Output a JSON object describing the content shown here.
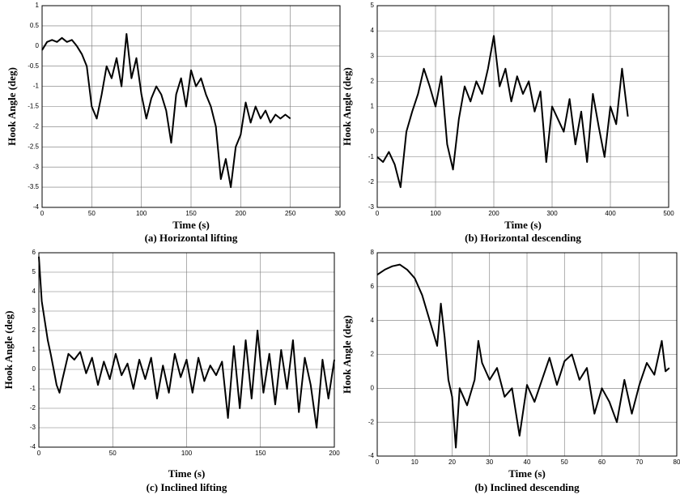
{
  "chart_data": [
    {
      "type": "line",
      "x_label": "Time (s)",
      "y_label": "Hook Angle (deg)",
      "caption": "(a) Horizontal lifting",
      "xlim": [
        0,
        300
      ],
      "ylim": [
        -4,
        1
      ],
      "xticks": [
        0,
        50,
        100,
        150,
        200,
        250,
        300
      ],
      "yticks": [
        -4,
        -3.5,
        -3,
        -2.5,
        -2,
        -1.5,
        -1,
        -0.5,
        0,
        0.5,
        1
      ],
      "grid": true,
      "series": [
        {
          "color": "#000000",
          "x": [
            0,
            5,
            10,
            15,
            20,
            25,
            30,
            35,
            40,
            45,
            50,
            55,
            60,
            65,
            70,
            75,
            80,
            85,
            90,
            95,
            100,
            105,
            110,
            115,
            120,
            125,
            130,
            135,
            140,
            145,
            150,
            155,
            160,
            165,
            170,
            175,
            180,
            185,
            190,
            195,
            200,
            205,
            210,
            215,
            220,
            225,
            230,
            235,
            240,
            245,
            250
          ],
          "values": [
            -0.1,
            0.1,
            0.15,
            0.1,
            0.2,
            0.1,
            0.15,
            0,
            -0.2,
            -0.5,
            -1.5,
            -1.8,
            -1.2,
            -0.5,
            -0.8,
            -0.3,
            -1.0,
            0.3,
            -0.8,
            -0.3,
            -1.2,
            -1.8,
            -1.3,
            -1.0,
            -1.2,
            -1.6,
            -2.4,
            -1.2,
            -0.8,
            -1.5,
            -0.6,
            -1.0,
            -0.8,
            -1.2,
            -1.5,
            -2.0,
            -3.3,
            -2.8,
            -3.5,
            -2.5,
            -2.2,
            -1.4,
            -1.9,
            -1.5,
            -1.8,
            -1.6,
            -1.9,
            -1.7,
            -1.8,
            -1.7,
            -1.8
          ]
        }
      ]
    },
    {
      "type": "line",
      "x_label": "Time (s)",
      "y_label": "Hook Angle (deg)",
      "caption": "(b) Horizontal descending",
      "xlim": [
        0,
        500
      ],
      "ylim": [
        -3,
        5
      ],
      "xticks": [
        0,
        100,
        200,
        300,
        400,
        500
      ],
      "yticks": [
        -3,
        -2,
        -1,
        0,
        1,
        2,
        3,
        4,
        5
      ],
      "grid": true,
      "series": [
        {
          "color": "#000000",
          "x": [
            0,
            10,
            20,
            30,
            40,
            50,
            60,
            70,
            80,
            90,
            100,
            110,
            120,
            130,
            140,
            150,
            160,
            170,
            180,
            190,
            200,
            210,
            220,
            230,
            240,
            250,
            260,
            270,
            280,
            290,
            300,
            310,
            320,
            330,
            340,
            350,
            360,
            370,
            380,
            390,
            400,
            410,
            420,
            430
          ],
          "values": [
            -1,
            -1.2,
            -0.8,
            -1.3,
            -2.2,
            0,
            0.8,
            1.5,
            2.5,
            1.8,
            1.0,
            2.2,
            -0.5,
            -1.5,
            0.5,
            1.8,
            1.2,
            2.0,
            1.5,
            2.5,
            3.8,
            1.8,
            2.5,
            1.2,
            2.2,
            1.5,
            2.0,
            0.8,
            1.6,
            -1.2,
            1.0,
            0.5,
            0,
            1.3,
            -0.5,
            0.8,
            -1.2,
            1.5,
            0.2,
            -1.0,
            1.0,
            0.3,
            2.5,
            0.6
          ]
        }
      ]
    },
    {
      "type": "line",
      "x_label": "Time (s)",
      "y_label": "Hook Angle (deg)",
      "caption": "(c) Inclined lifting",
      "xlim": [
        0,
        200
      ],
      "ylim": [
        -4,
        6
      ],
      "xticks": [
        0,
        50,
        100,
        150,
        200
      ],
      "yticks": [
        -4,
        -3,
        -2,
        -1,
        0,
        1,
        2,
        3,
        4,
        5,
        6
      ],
      "grid": true,
      "series": [
        {
          "color": "#000000",
          "x": [
            0,
            2,
            4,
            6,
            8,
            10,
            12,
            14,
            16,
            20,
            24,
            28,
            32,
            36,
            40,
            44,
            48,
            52,
            56,
            60,
            64,
            68,
            72,
            76,
            80,
            84,
            88,
            92,
            96,
            100,
            104,
            108,
            112,
            116,
            120,
            124,
            128,
            132,
            136,
            140,
            144,
            148,
            152,
            156,
            160,
            164,
            168,
            172,
            176,
            180,
            184,
            188,
            192,
            196,
            200
          ],
          "values": [
            5.8,
            3.5,
            2.5,
            1.5,
            0.8,
            0,
            -0.8,
            -1.2,
            -0.5,
            0.8,
            0.5,
            0.9,
            -0.2,
            0.6,
            -0.8,
            0.4,
            -0.5,
            0.8,
            -0.3,
            0.3,
            -1.0,
            0.5,
            -0.5,
            0.6,
            -1.5,
            0.2,
            -1.2,
            0.8,
            -0.4,
            0.5,
            -1.2,
            0.6,
            -0.6,
            0.2,
            -0.3,
            0.4,
            -2.5,
            1.2,
            -2.0,
            1.5,
            -1.5,
            2.0,
            -1.2,
            0.8,
            -1.8,
            1.0,
            -1.0,
            1.5,
            -2.2,
            0.6,
            -0.8,
            -3.0,
            0.5,
            -1.5,
            0.5
          ]
        }
      ]
    },
    {
      "type": "line",
      "x_label": "Time (s)",
      "y_label": "Hook Angle (deg)",
      "caption": "(b) Inclined descending",
      "xlim": [
        0,
        80
      ],
      "ylim": [
        -4,
        8
      ],
      "xticks": [
        0,
        10,
        20,
        30,
        40,
        50,
        60,
        70,
        80
      ],
      "yticks": [
        -4,
        -2,
        0,
        2,
        4,
        6,
        8
      ],
      "grid": true,
      "series": [
        {
          "color": "#000000",
          "x": [
            0,
            2,
            4,
            6,
            8,
            10,
            12,
            14,
            16,
            17,
            18,
            19,
            20,
            21,
            22,
            24,
            26,
            27,
            28,
            30,
            32,
            34,
            36,
            38,
            40,
            42,
            44,
            46,
            48,
            50,
            52,
            54,
            56,
            58,
            60,
            62,
            64,
            66,
            68,
            70,
            72,
            74,
            76,
            77,
            78
          ],
          "values": [
            6.7,
            7.0,
            7.2,
            7.3,
            7.0,
            6.5,
            5.5,
            4.0,
            2.5,
            5.0,
            3.0,
            0.5,
            -0.5,
            -3.5,
            0,
            -1.0,
            0.5,
            2.8,
            1.5,
            0.5,
            1.2,
            -0.5,
            0,
            -2.8,
            0.2,
            -0.8,
            0.5,
            1.8,
            0.2,
            1.6,
            2.0,
            0.5,
            1.2,
            -1.5,
            0,
            -0.8,
            -2.0,
            0.5,
            -1.5,
            0.2,
            1.5,
            0.8,
            2.8,
            1.0,
            1.2
          ]
        }
      ]
    }
  ]
}
